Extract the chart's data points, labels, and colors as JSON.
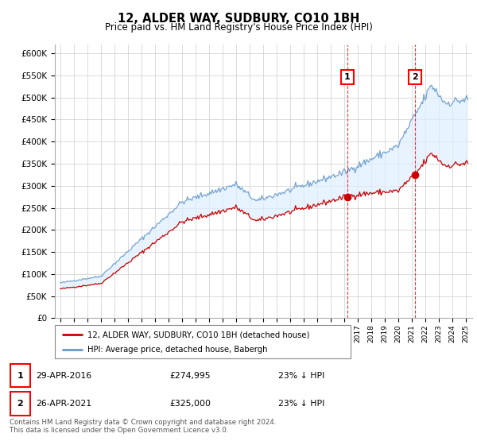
{
  "title": "12, ALDER WAY, SUDBURY, CO10 1BH",
  "subtitle": "Price paid vs. HM Land Registry's House Price Index (HPI)",
  "ylabel_ticks": [
    "£0",
    "£50K",
    "£100K",
    "£150K",
    "£200K",
    "£250K",
    "£300K",
    "£350K",
    "£400K",
    "£450K",
    "£500K",
    "£550K",
    "£600K"
  ],
  "ytick_values": [
    0,
    50000,
    100000,
    150000,
    200000,
    250000,
    300000,
    350000,
    400000,
    450000,
    500000,
    550000,
    600000
  ],
  "ylim": [
    0,
    620000
  ],
  "sale1_year": 2016,
  "sale1_month": 4,
  "sale1_price": 274995,
  "sale2_year": 2021,
  "sale2_month": 4,
  "sale2_price": 325000,
  "legend_entry1": "12, ALDER WAY, SUDBURY, CO10 1BH (detached house)",
  "legend_entry2": "HPI: Average price, detached house, Babergh",
  "table_row1": [
    "1",
    "29-APR-2016",
    "£274,995",
    "23% ↓ HPI"
  ],
  "table_row2": [
    "2",
    "26-APR-2021",
    "£325,000",
    "23% ↓ HPI"
  ],
  "footer": "Contains HM Land Registry data © Crown copyright and database right 2024.\nThis data is licensed under the Open Government Licence v3.0.",
  "line_color_red": "#cc0000",
  "line_color_blue": "#6699cc",
  "fill_color_blue": "#ddeeff",
  "background_color": "#ffffff",
  "grid_color": "#cccccc"
}
